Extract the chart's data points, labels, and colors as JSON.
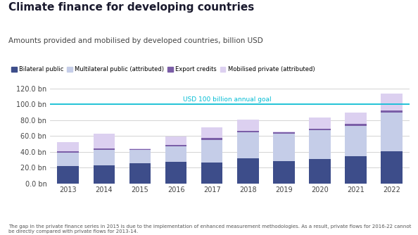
{
  "title": "Climate finance for developing countries",
  "subtitle": "Amounts provided and mobilised by developed countries, billion USD",
  "footnote": "The gap in the private finance series in 2015 is due to the implementation of enhanced measurement methodologies. As a result, private flows for 2016-22 cannot be directly compared with private flows for 2013-14.",
  "years": [
    2013,
    2014,
    2015,
    2016,
    2017,
    2018,
    2019,
    2020,
    2021,
    2022
  ],
  "bilateral_public": [
    22.0,
    23.0,
    25.5,
    27.5,
    26.5,
    32.0,
    28.5,
    31.0,
    34.5,
    41.0
  ],
  "multilateral_public": [
    17.0,
    19.5,
    16.5,
    19.5,
    28.5,
    32.5,
    34.5,
    36.5,
    38.0,
    49.0
  ],
  "export_credits": [
    1.5,
    1.5,
    1.5,
    1.5,
    2.5,
    2.0,
    2.0,
    1.5,
    2.5,
    2.5
  ],
  "mobilised_private": [
    12.0,
    18.5,
    0.5,
    11.0,
    13.5,
    14.5,
    0.5,
    14.5,
    14.5,
    21.0
  ],
  "colors": {
    "bilateral_public": "#3d4d8a",
    "multilateral_public": "#c5cde8",
    "export_credits": "#7b5ea7",
    "mobilised_private": "#dcd0f0"
  },
  "legend_labels": [
    "Bilateral public",
    "Multilateral public (attributed)",
    "Export credits",
    "Mobilised private (attributed)"
  ],
  "goal_line": 100.0,
  "goal_label": "USD 100 billion annual goal",
  "goal_color": "#00bcd4",
  "ylim": [
    0,
    125
  ],
  "yticks": [
    0,
    20,
    40,
    60,
    80,
    100,
    120
  ],
  "ytick_labels": [
    "0.0 bn",
    "20.0 bn",
    "40.0 bn",
    "60.0 bn",
    "80.0 bn",
    "100.0 bn",
    "120.0 bn"
  ],
  "background_color": "#ffffff",
  "title_color": "#1a1a2e",
  "subtitle_color": "#444444",
  "footnote_color": "#555555",
  "grid_color": "#cccccc"
}
